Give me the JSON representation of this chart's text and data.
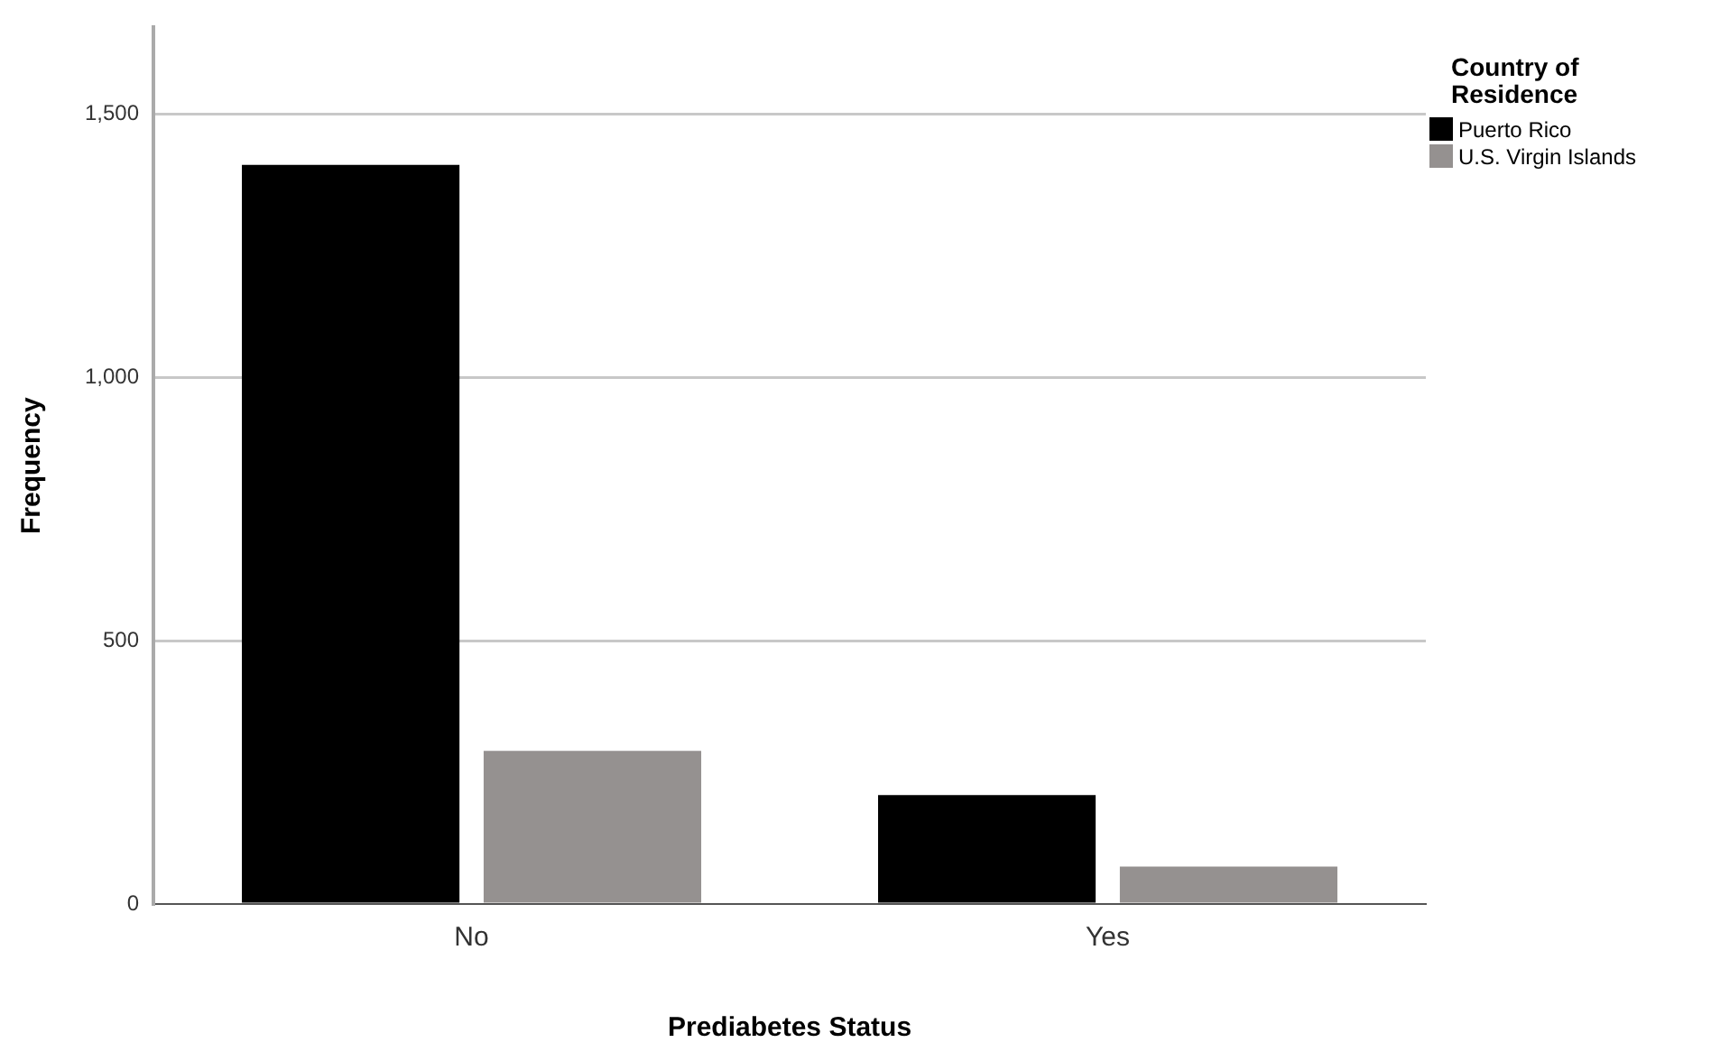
{
  "chart_data": {
    "type": "bar",
    "xlabel": "Prediabetes Status",
    "ylabel": "Frequency",
    "legend_title": "Country of Residence",
    "categories": [
      "No",
      "Yes"
    ],
    "series": [
      {
        "name": "Puerto Rico",
        "color": "#000000",
        "values": [
          1404,
          207
        ]
      },
      {
        "name": "U.S. Virgin Islands",
        "color": "#959190",
        "values": [
          291,
          71
        ]
      }
    ],
    "ylim": [
      0,
      1665
    ],
    "yticks": [
      0,
      500,
      {
        "value": 1000,
        "label": "1,000"
      },
      {
        "value": 1500,
        "label": "1,500"
      }
    ],
    "grid": "y",
    "legend": "top right"
  }
}
